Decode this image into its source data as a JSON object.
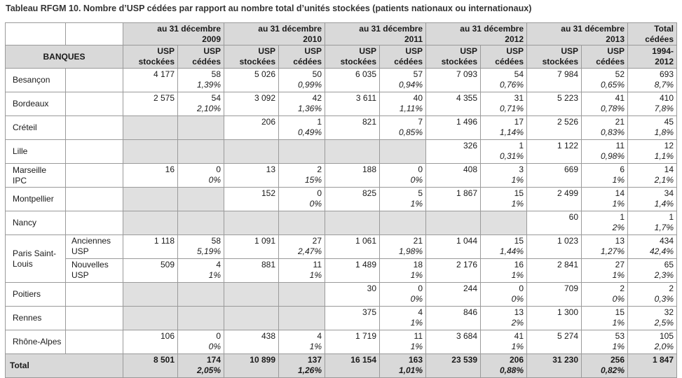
{
  "caption": "Tableau RFGM 10. Nombre d’USP cédées par rapport au nombre total d’unités stockées (patients nationaux ou internationaux)",
  "header": {
    "years": [
      {
        "line1": "au 31 décembre",
        "line2": "2009"
      },
      {
        "line1": "au 31 décembre",
        "line2": "2010"
      },
      {
        "line1": "au 31 décembre",
        "line2": "2011"
      },
      {
        "line1": "au 31 décembre",
        "line2": "2012"
      },
      {
        "line1": "au 31 décembre",
        "line2": "2013"
      }
    ],
    "total_line1": "Total",
    "total_line2": "cédées",
    "banques": "BANQUES",
    "stockees_line1": "USP",
    "stockees_line2": "stockées",
    "cedees_line1": "USP",
    "cedees_line2": "cédées",
    "period_line1": "1994-",
    "period_line2": "2012"
  },
  "rows": [
    {
      "bank": "Besançon",
      "cells": [
        {
          "s": "4 177",
          "c": "58",
          "p": "1,39%"
        },
        {
          "s": "5 026",
          "c": "50",
          "p": "0,99%"
        },
        {
          "s": "6 035",
          "c": "57",
          "p": "0,94%"
        },
        {
          "s": "7 093",
          "c": "54",
          "p": "0,76%"
        },
        {
          "s": "7 984",
          "c": "52",
          "p": "0,65%"
        }
      ],
      "total": "693",
      "total_p": "8,7%"
    },
    {
      "bank": "Bordeaux",
      "cells": [
        {
          "s": "2 575",
          "c": "54",
          "p": "2,10%"
        },
        {
          "s": "3 092",
          "c": "42",
          "p": "1,36%"
        },
        {
          "s": "3 611",
          "c": "40",
          "p": "1,11%"
        },
        {
          "s": "4 355",
          "c": "31",
          "p": "0,71%"
        },
        {
          "s": "5 223",
          "c": "41",
          "p": "0,78%"
        }
      ],
      "total": "410",
      "total_p": "7,8%"
    },
    {
      "bank": "Créteil",
      "cells": [
        null,
        {
          "s": "206",
          "c": "1",
          "p": "0,49%"
        },
        {
          "s": "821",
          "c": "7",
          "p": "0,85%"
        },
        {
          "s": "1 496",
          "c": "17",
          "p": "1,14%"
        },
        {
          "s": "2 526",
          "c": "21",
          "p": "0,83%"
        }
      ],
      "total": "45",
      "total_p": "1,8%"
    },
    {
      "bank": "Lille",
      "cells": [
        null,
        null,
        null,
        {
          "s": "326",
          "c": "1",
          "p": "0,31%"
        },
        {
          "s": "1 122",
          "c": "11",
          "p": "0,98%"
        }
      ],
      "total": "12",
      "total_p": "1,1%"
    },
    {
      "bank": "Marseille IPC",
      "cells": [
        {
          "s": "16",
          "c": "0",
          "p": "0%"
        },
        {
          "s": "13",
          "c": "2",
          "p": "15%"
        },
        {
          "s": "188",
          "c": "0",
          "p": "0%"
        },
        {
          "s": "408",
          "c": "3",
          "p": "1%"
        },
        {
          "s": "669",
          "c": "6",
          "p": "1%"
        }
      ],
      "total": "14",
      "total_p": "2,1%"
    },
    {
      "bank": "Montpellier",
      "cells": [
        null,
        {
          "s": "152",
          "c": "0",
          "p": "0%"
        },
        {
          "s": "825",
          "c": "5",
          "p": "1%"
        },
        {
          "s": "1 867",
          "c": "15",
          "p": "1%"
        },
        {
          "s": "2 499",
          "c": "14",
          "p": "1%"
        }
      ],
      "total": "34",
      "total_p": "1,4%"
    },
    {
      "bank": "Nancy",
      "cells": [
        null,
        null,
        null,
        null,
        {
          "s": "60",
          "c": "1",
          "p": "2%"
        }
      ],
      "total": "1",
      "total_p": "1,7%"
    },
    {
      "bank": "Paris Saint-Louis",
      "sub": "Anciennes USP",
      "cells": [
        {
          "s": "1 118",
          "c": "58",
          "p": "5,19%"
        },
        {
          "s": "1 091",
          "c": "27",
          "p": "2,47%"
        },
        {
          "s": "1 061",
          "c": "21",
          "p": "1,98%"
        },
        {
          "s": "1 044",
          "c": "15",
          "p": "1,44%"
        },
        {
          "s": "1 023",
          "c": "13",
          "p": "1,27%"
        }
      ],
      "total": "434",
      "total_p": "42,4%"
    },
    {
      "bank": "",
      "sub": "Nouvelles USP",
      "cells": [
        {
          "s": "509",
          "c": "4",
          "p": "1%"
        },
        {
          "s": "881",
          "c": "11",
          "p": "1%"
        },
        {
          "s": "1 489",
          "c": "18",
          "p": "1%"
        },
        {
          "s": "2 176",
          "c": "16",
          "p": "1%"
        },
        {
          "s": "2 841",
          "c": "27",
          "p": "1%"
        }
      ],
      "total": "65",
      "total_p": "2,3%"
    },
    {
      "bank": "Poitiers",
      "cells": [
        null,
        null,
        {
          "s": "30",
          "c": "0",
          "p": "0%"
        },
        {
          "s": "244",
          "c": "0",
          "p": "0%"
        },
        {
          "s": "709",
          "c": "2",
          "p": "0%"
        }
      ],
      "total": "2",
      "total_p": "0,3%"
    },
    {
      "bank": "Rennes",
      "cells": [
        null,
        null,
        {
          "s": "375",
          "c": "4",
          "p": "1%"
        },
        {
          "s": "846",
          "c": "13",
          "p": "2%"
        },
        {
          "s": "1 300",
          "c": "15",
          "p": "1%"
        }
      ],
      "total": "32",
      "total_p": "2,5%"
    },
    {
      "bank": "Rhône-Alpes",
      "cells": [
        {
          "s": "106",
          "c": "0",
          "p": "0%"
        },
        {
          "s": "438",
          "c": "4",
          "p": "1%"
        },
        {
          "s": "1 719",
          "c": "11",
          "p": "1%"
        },
        {
          "s": "3 684",
          "c": "41",
          "p": "1%"
        },
        {
          "s": "5 274",
          "c": "53",
          "p": "1%"
        }
      ],
      "total": "105",
      "total_p": "2,0%"
    }
  ],
  "total_row": {
    "label": "Total",
    "cells": [
      {
        "s": "8 501",
        "c": "174",
        "p": "2,05%"
      },
      {
        "s": "10 899",
        "c": "137",
        "p": "1,26%"
      },
      {
        "s": "16 154",
        "c": "163",
        "p": "1,01%"
      },
      {
        "s": "23 539",
        "c": "206",
        "p": "0,88%"
      },
      {
        "s": "31 230",
        "c": "256",
        "p": "0,82%"
      }
    ],
    "total": "1 847"
  }
}
